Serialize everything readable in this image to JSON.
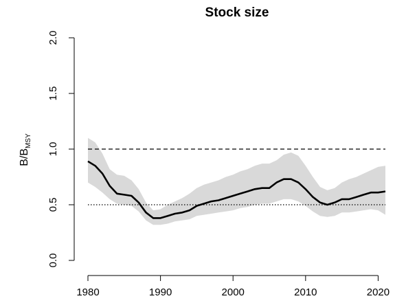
{
  "chart_data": {
    "type": "area",
    "title": "Stock size",
    "ylabel_main": "B/B",
    "ylabel_sub": "MSY",
    "xlim": [
      1980,
      2021
    ],
    "ylim": [
      0,
      2
    ],
    "x_ticks": [
      1980,
      1990,
      2000,
      2010,
      2020
    ],
    "y_ticks": [
      0.0,
      0.5,
      1.0,
      1.5,
      2.0
    ],
    "y_tick_labels": [
      "0.0",
      "0.5",
      "1.0",
      "1.5",
      "2.0"
    ],
    "grid": false,
    "reference_lines": [
      {
        "y": 1.0,
        "style": "dashed"
      },
      {
        "y": 0.5,
        "style": "dotted"
      }
    ],
    "colors": {
      "band": "#d9d9d9",
      "line": "#000000"
    },
    "years": [
      1980,
      1981,
      1982,
      1983,
      1984,
      1985,
      1986,
      1987,
      1988,
      1989,
      1990,
      1991,
      1992,
      1993,
      1994,
      1995,
      1996,
      1997,
      1998,
      1999,
      2000,
      2001,
      2002,
      2003,
      2004,
      2005,
      2006,
      2007,
      2008,
      2009,
      2010,
      2011,
      2012,
      2013,
      2014,
      2015,
      2016,
      2017,
      2018,
      2019,
      2020,
      2021
    ],
    "series": [
      {
        "values": [
          0.89,
          0.85,
          0.78,
          0.67,
          0.6,
          0.59,
          0.58,
          0.52,
          0.43,
          0.38,
          0.38,
          0.4,
          0.42,
          0.43,
          0.45,
          0.49,
          0.51,
          0.53,
          0.54,
          0.56,
          0.58,
          0.6,
          0.62,
          0.64,
          0.65,
          0.65,
          0.7,
          0.73,
          0.73,
          0.7,
          0.64,
          0.57,
          0.52,
          0.5,
          0.52,
          0.55,
          0.55,
          0.57,
          0.59,
          0.61,
          0.61,
          0.62
        ],
        "lower": [
          0.7,
          0.66,
          0.61,
          0.55,
          0.51,
          0.5,
          0.49,
          0.44,
          0.36,
          0.32,
          0.32,
          0.33,
          0.35,
          0.36,
          0.37,
          0.4,
          0.41,
          0.42,
          0.43,
          0.44,
          0.45,
          0.47,
          0.48,
          0.5,
          0.51,
          0.51,
          0.53,
          0.55,
          0.55,
          0.53,
          0.49,
          0.44,
          0.4,
          0.39,
          0.4,
          0.43,
          0.43,
          0.44,
          0.45,
          0.46,
          0.45,
          0.41
        ],
        "upper": [
          1.1,
          1.06,
          0.96,
          0.82,
          0.77,
          0.76,
          0.72,
          0.64,
          0.52,
          0.45,
          0.46,
          0.5,
          0.53,
          0.56,
          0.6,
          0.65,
          0.68,
          0.7,
          0.72,
          0.75,
          0.77,
          0.8,
          0.82,
          0.85,
          0.87,
          0.87,
          0.9,
          0.95,
          0.97,
          0.94,
          0.85,
          0.75,
          0.66,
          0.63,
          0.65,
          0.7,
          0.73,
          0.75,
          0.78,
          0.81,
          0.84,
          0.85
        ]
      }
    ]
  }
}
